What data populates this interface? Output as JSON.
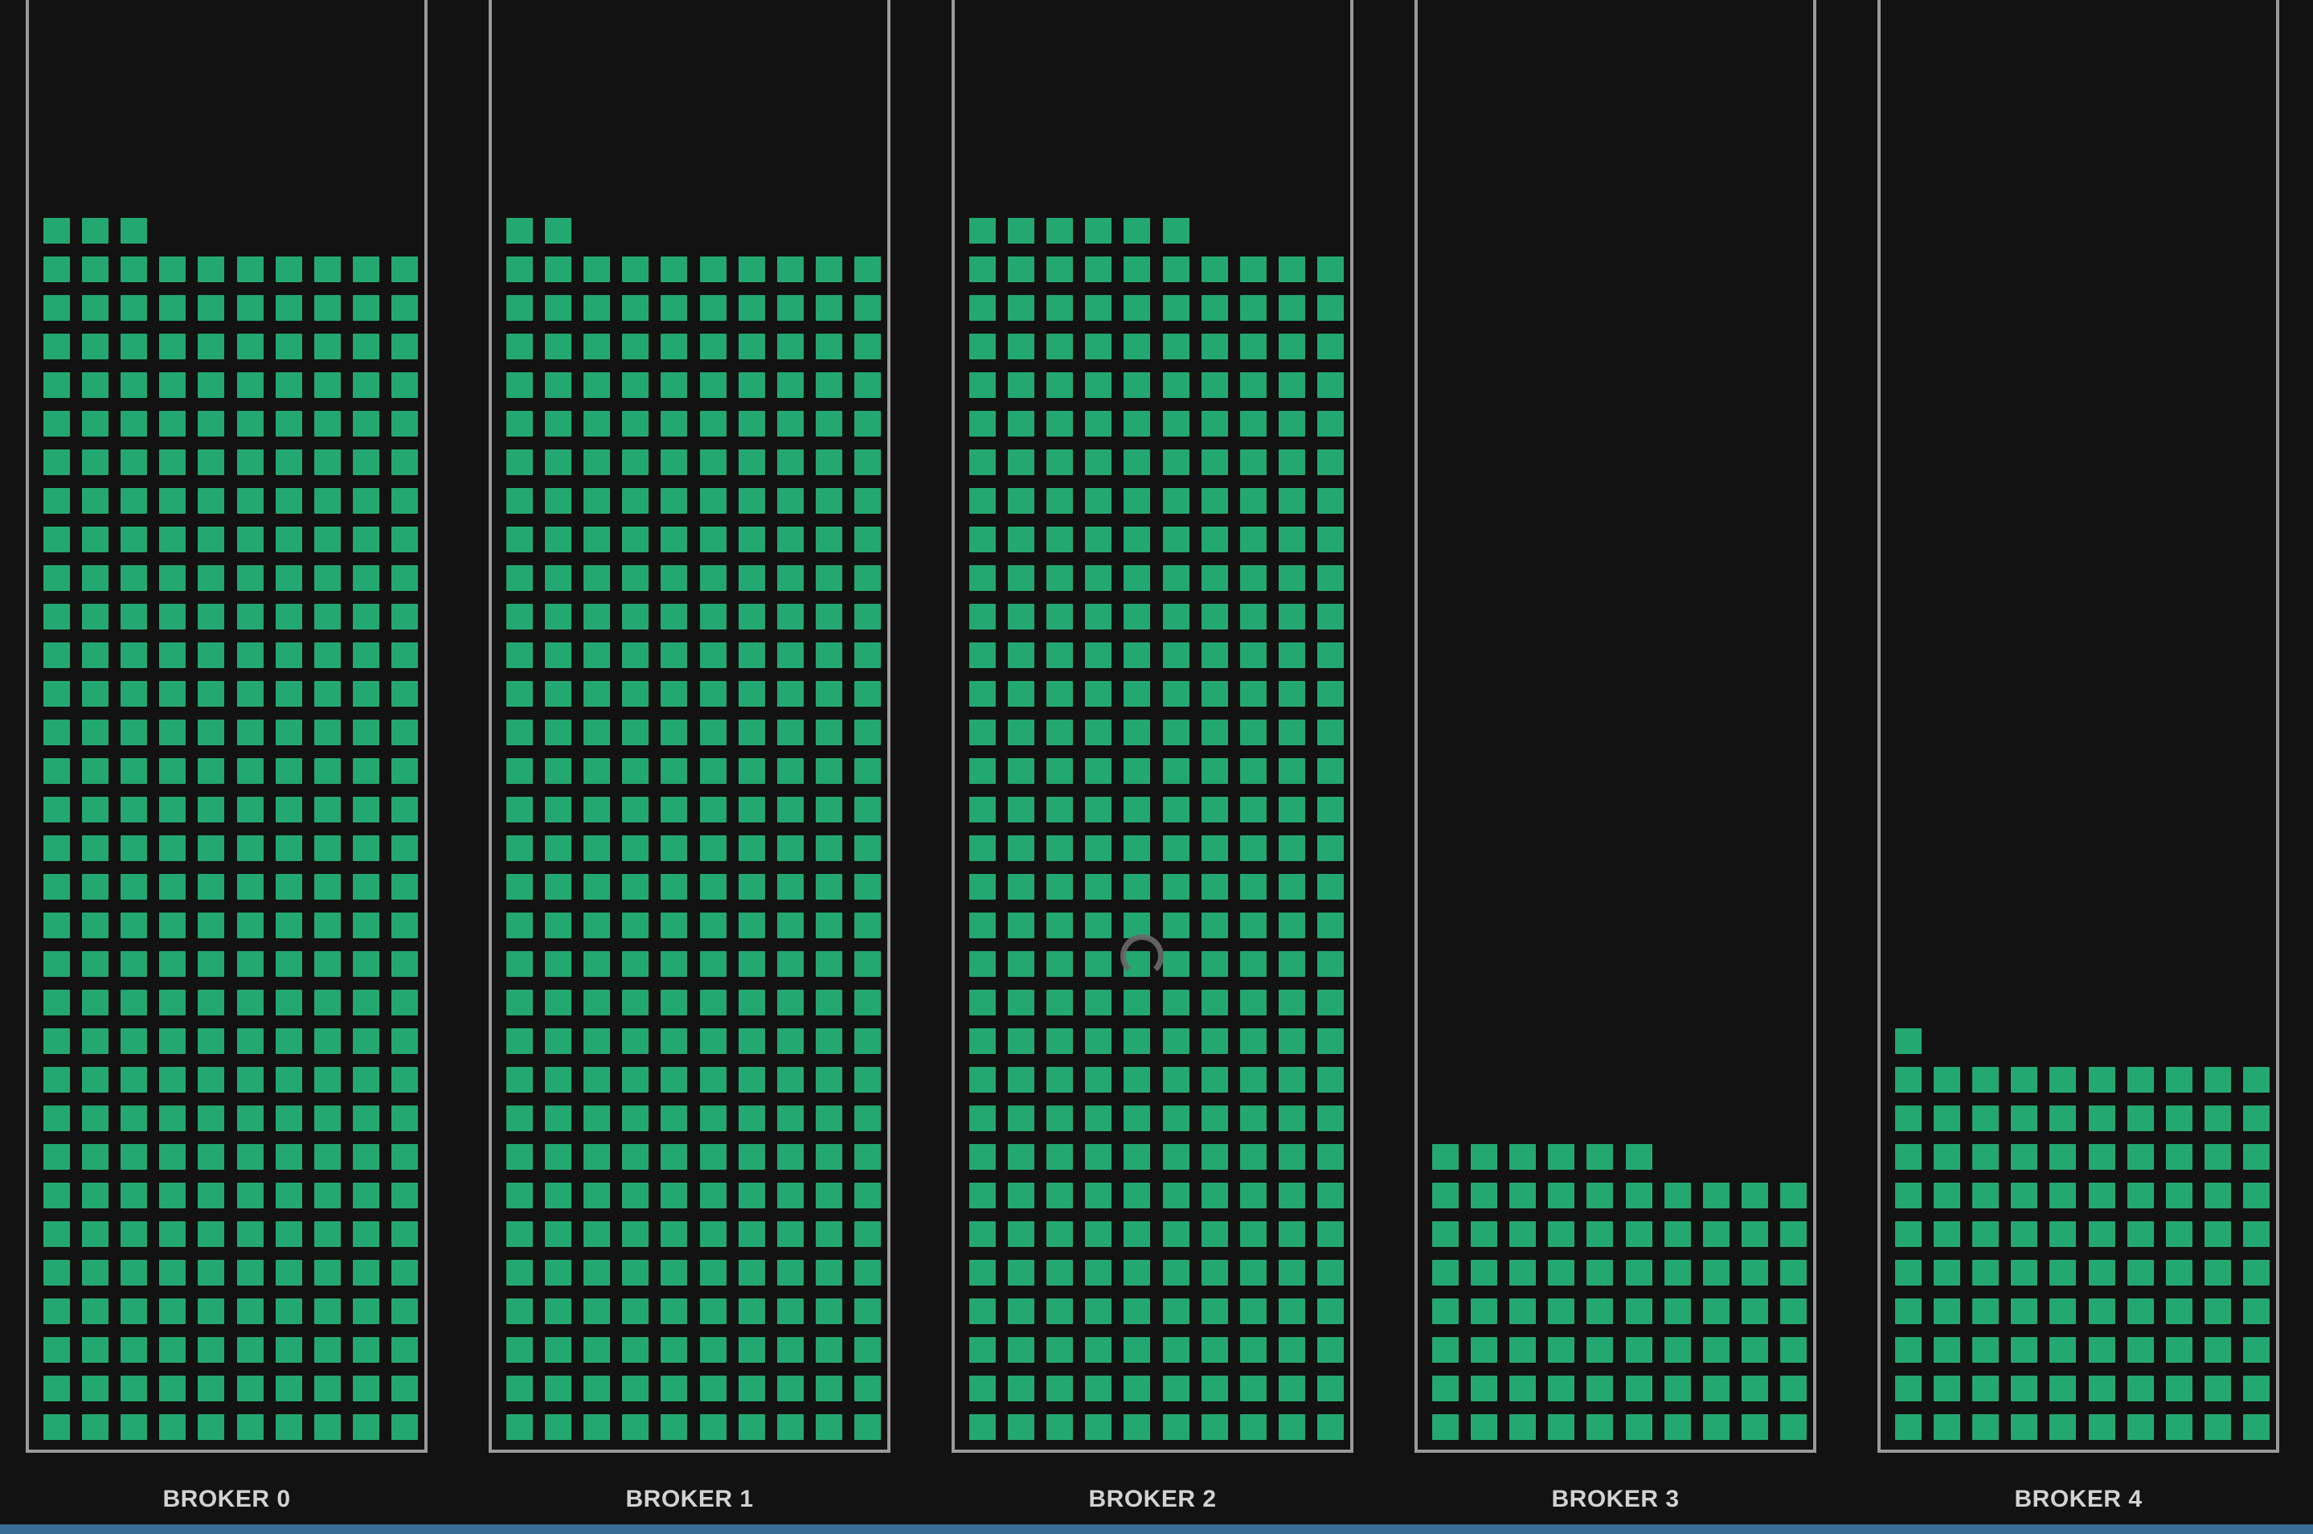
{
  "brokers": [
    {
      "label": "BROKER 0",
      "partitions": 313
    },
    {
      "label": "BROKER 1",
      "partitions": 312
    },
    {
      "label": "BROKER 2",
      "partitions": 316
    },
    {
      "label": "BROKER 3",
      "partitions": 76
    },
    {
      "label": "BROKER 4",
      "partitions": 101
    }
  ],
  "grid_columns": 10,
  "colors": {
    "background": "#121212",
    "cell": "#23a871",
    "frame": "#9a9a9a",
    "label": "#d2d2d2",
    "taskbar": "#3a6d96"
  },
  "icons": {
    "spinner": "loading-spinner-icon"
  }
}
